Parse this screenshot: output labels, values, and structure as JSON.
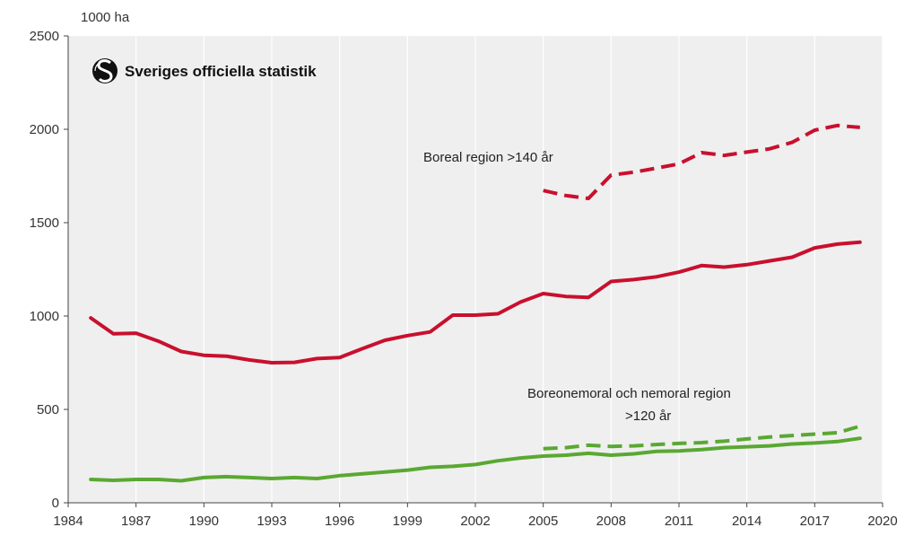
{
  "logo": {
    "text": "Sveriges officiella statistik"
  },
  "colors": {
    "red": "#c8102e",
    "green": "#5aa832",
    "plot_bg": "#efefef",
    "axis": "#444444"
  },
  "chart_data": {
    "type": "line",
    "ylabel": "1000 ha",
    "xlim": [
      1984,
      2020
    ],
    "ylim": [
      0,
      2500
    ],
    "x_ticks": [
      1984,
      1987,
      1990,
      1993,
      1996,
      1999,
      2002,
      2005,
      2008,
      2011,
      2014,
      2017,
      2020
    ],
    "y_ticks": [
      0,
      500,
      1000,
      1500,
      2000,
      2500
    ],
    "grid": "vertical",
    "annotations": [
      {
        "text": "Boreal region >140 år",
        "series": "boreal_140"
      },
      {
        "text": "Boreonemoral och nemoral region",
        "series": "nemoral_120"
      },
      {
        "text": ">120 år",
        "series": "nemoral_120"
      }
    ],
    "series": [
      {
        "id": "boreal_total",
        "color": "#c8102e",
        "style": "solid",
        "x": [
          1985,
          1986,
          1987,
          1988,
          1989,
          1990,
          1991,
          1992,
          1993,
          1994,
          1995,
          1996,
          1997,
          1998,
          1999,
          2000,
          2001,
          2002,
          2003,
          2004,
          2005,
          2006,
          2007,
          2008,
          2009,
          2010,
          2011,
          2012,
          2013,
          2014,
          2015,
          2016,
          2017,
          2018,
          2019
        ],
        "values": [
          990,
          905,
          908,
          865,
          810,
          790,
          785,
          765,
          750,
          752,
          772,
          778,
          825,
          870,
          895,
          915,
          1005,
          1005,
          1012,
          1075,
          1120,
          1105,
          1100,
          1185,
          1195,
          1210,
          1235,
          1270,
          1262,
          1275,
          1295,
          1315,
          1365,
          1385,
          1395
        ]
      },
      {
        "id": "boreal_140",
        "color": "#c8102e",
        "style": "dashed",
        "x": [
          2005,
          2006,
          2007,
          2008,
          2009,
          2010,
          2011,
          2012,
          2013,
          2014,
          2015,
          2016,
          2017,
          2018,
          2019
        ],
        "values": [
          1672,
          1645,
          1630,
          1755,
          1770,
          1792,
          1815,
          1875,
          1860,
          1878,
          1895,
          1930,
          1995,
          2020,
          2010
        ]
      },
      {
        "id": "nemoral_total",
        "color": "#5aa832",
        "style": "solid",
        "x": [
          1985,
          1986,
          1987,
          1988,
          1989,
          1990,
          1991,
          1992,
          1993,
          1994,
          1995,
          1996,
          1997,
          1998,
          1999,
          2000,
          2001,
          2002,
          2003,
          2004,
          2005,
          2006,
          2007,
          2008,
          2009,
          2010,
          2011,
          2012,
          2013,
          2014,
          2015,
          2016,
          2017,
          2018,
          2019
        ],
        "values": [
          125,
          120,
          125,
          125,
          118,
          135,
          140,
          135,
          130,
          135,
          130,
          145,
          155,
          165,
          175,
          190,
          195,
          205,
          225,
          240,
          250,
          255,
          265,
          255,
          262,
          275,
          278,
          285,
          295,
          300,
          305,
          315,
          320,
          328,
          345
        ]
      },
      {
        "id": "nemoral_120",
        "color": "#5aa832",
        "style": "dashed",
        "x": [
          2005,
          2006,
          2007,
          2008,
          2009,
          2010,
          2011,
          2012,
          2013,
          2014,
          2015,
          2016,
          2017,
          2018,
          2019
        ],
        "values": [
          290,
          295,
          308,
          302,
          305,
          312,
          318,
          322,
          330,
          342,
          352,
          360,
          368,
          375,
          410
        ]
      }
    ]
  }
}
